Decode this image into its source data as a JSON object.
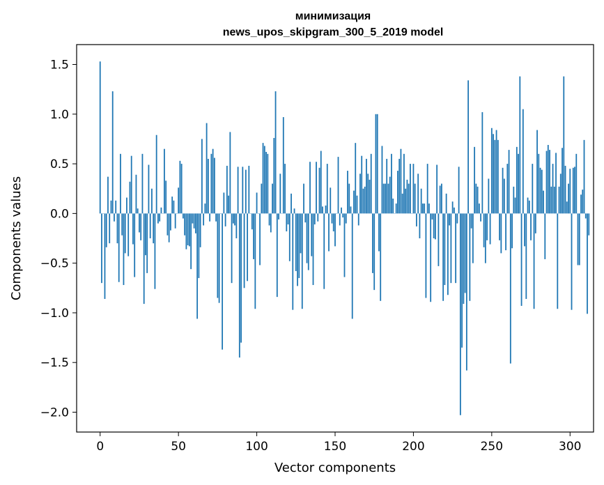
{
  "chart_data": {
    "type": "bar",
    "title_lines": [
      "минимизация",
      "news_upos_skipgram_300_5_2019 model"
    ],
    "xlabel": "Vector components",
    "ylabel": "Components values",
    "xlim": [
      -15,
      315
    ],
    "ylim": [
      -2.2,
      1.7
    ],
    "xticks": [
      0,
      50,
      100,
      150,
      200,
      250,
      300
    ],
    "xtick_labels": [
      "0",
      "50",
      "100",
      "150",
      "200",
      "250",
      "300"
    ],
    "yticks": [
      -2.0,
      -1.5,
      -1.0,
      -0.5,
      0.0,
      0.5,
      1.0,
      1.5
    ],
    "ytick_labels": [
      "−2.0",
      "−1.5",
      "−1.0",
      "−0.5",
      "0.0",
      "0.5",
      "1.0",
      "1.5"
    ],
    "bar_color": "#1f77b4",
    "values": [
      1.53,
      -0.7,
      0.0,
      -0.86,
      -0.34,
      0.37,
      -0.3,
      0.13,
      1.23,
      -0.08,
      0.13,
      -0.3,
      -0.69,
      0.6,
      -0.22,
      -0.72,
      -0.4,
      0.16,
      -0.43,
      0.32,
      0.58,
      -0.31,
      -0.64,
      0.39,
      0.05,
      -0.19,
      -0.27,
      0.6,
      -0.91,
      -0.42,
      -0.6,
      0.49,
      -0.25,
      0.25,
      -0.3,
      -0.76,
      0.79,
      -0.1,
      -0.08,
      0.06,
      0.0,
      0.65,
      0.33,
      -0.22,
      -0.29,
      -0.17,
      0.17,
      0.13,
      -0.15,
      0.0,
      0.26,
      0.53,
      0.5,
      -0.05,
      -0.22,
      -0.36,
      -0.32,
      -0.33,
      -0.56,
      -0.1,
      -0.15,
      -0.2,
      -1.06,
      -0.65,
      -0.34,
      0.75,
      -0.12,
      0.1,
      0.91,
      0.55,
      -0.08,
      0.6,
      0.65,
      0.56,
      -0.08,
      -0.85,
      -0.9,
      0.0,
      -1.37,
      0.21,
      -0.13,
      0.48,
      0.18,
      0.82,
      -0.7,
      -0.1,
      -0.12,
      -0.25,
      0.47,
      -1.45,
      -1.3,
      0.47,
      -0.75,
      0.44,
      -0.68,
      0.48,
      0.0,
      -0.16,
      -0.46,
      -0.96,
      0.21,
      0.0,
      -0.52,
      0.3,
      0.71,
      0.68,
      0.62,
      0.6,
      -0.12,
      -0.19,
      0.3,
      0.76,
      1.23,
      -0.84,
      -0.06,
      0.4,
      0.0,
      0.97,
      0.5,
      -0.18,
      -0.11,
      -0.48,
      0.2,
      -0.97,
      0.05,
      -0.58,
      -0.73,
      -0.65,
      -0.4,
      -0.96,
      0.3,
      -0.09,
      -0.5,
      -0.57,
      0.52,
      -0.43,
      -0.72,
      -0.11,
      0.52,
      -0.08,
      0.46,
      0.63,
      0.07,
      -0.76,
      0.08,
      0.5,
      -0.38,
      0.26,
      -0.1,
      -0.18,
      -0.33,
      0.0,
      0.57,
      -0.12,
      0.06,
      -0.04,
      -0.64,
      -0.1,
      0.43,
      0.3,
      0.07,
      -1.06,
      0.23,
      0.71,
      0.18,
      -0.12,
      0.4,
      0.58,
      0.25,
      0.27,
      0.55,
      0.4,
      0.34,
      0.6,
      -0.6,
      -0.77,
      1.0,
      1.0,
      -0.38,
      -0.88,
      0.68,
      0.3,
      0.3,
      0.55,
      0.3,
      0.37,
      0.6,
      0.15,
      0.0,
      0.1,
      0.43,
      0.55,
      0.65,
      0.2,
      0.6,
      0.25,
      0.34,
      0.3,
      0.5,
      0.0,
      0.5,
      0.3,
      -0.13,
      0.4,
      -0.25,
      0.25,
      0.1,
      0.1,
      -0.85,
      0.5,
      0.1,
      -0.89,
      -0.06,
      -0.25,
      -0.26,
      0.49,
      -0.53,
      0.28,
      0.3,
      -0.88,
      -0.72,
      0.2,
      -0.82,
      -0.12,
      -0.7,
      0.12,
      0.06,
      -0.7,
      -0.1,
      0.47,
      -2.03,
      -1.35,
      -0.91,
      -0.8,
      -1.58,
      1.34,
      -0.88,
      -0.15,
      -0.5,
      0.67,
      0.3,
      0.27,
      0.1,
      -0.08,
      1.02,
      -0.34,
      -0.5,
      -0.27,
      0.35,
      -0.31,
      0.86,
      0.8,
      0.74,
      0.84,
      0.74,
      -0.27,
      -0.4,
      0.46,
      0.35,
      -0.37,
      0.5,
      0.64,
      -1.51,
      -0.35,
      0.27,
      0.16,
      0.67,
      0.6,
      1.38,
      -0.93,
      1.05,
      -0.33,
      -0.86,
      0.16,
      0.13,
      -0.27,
      0.5,
      -0.96,
      -0.2,
      0.84,
      0.6,
      0.46,
      0.44,
      0.23,
      -0.46,
      0.63,
      0.69,
      0.64,
      0.27,
      0.5,
      0.27,
      0.61,
      -0.96,
      0.27,
      0.4,
      0.66,
      1.38,
      0.48,
      0.12,
      0.3,
      0.45,
      -0.97,
      0.46,
      0.47,
      0.6,
      -0.52,
      -0.52,
      0.19,
      0.24,
      0.74,
      -0.05,
      -1.01,
      -0.22
    ]
  }
}
